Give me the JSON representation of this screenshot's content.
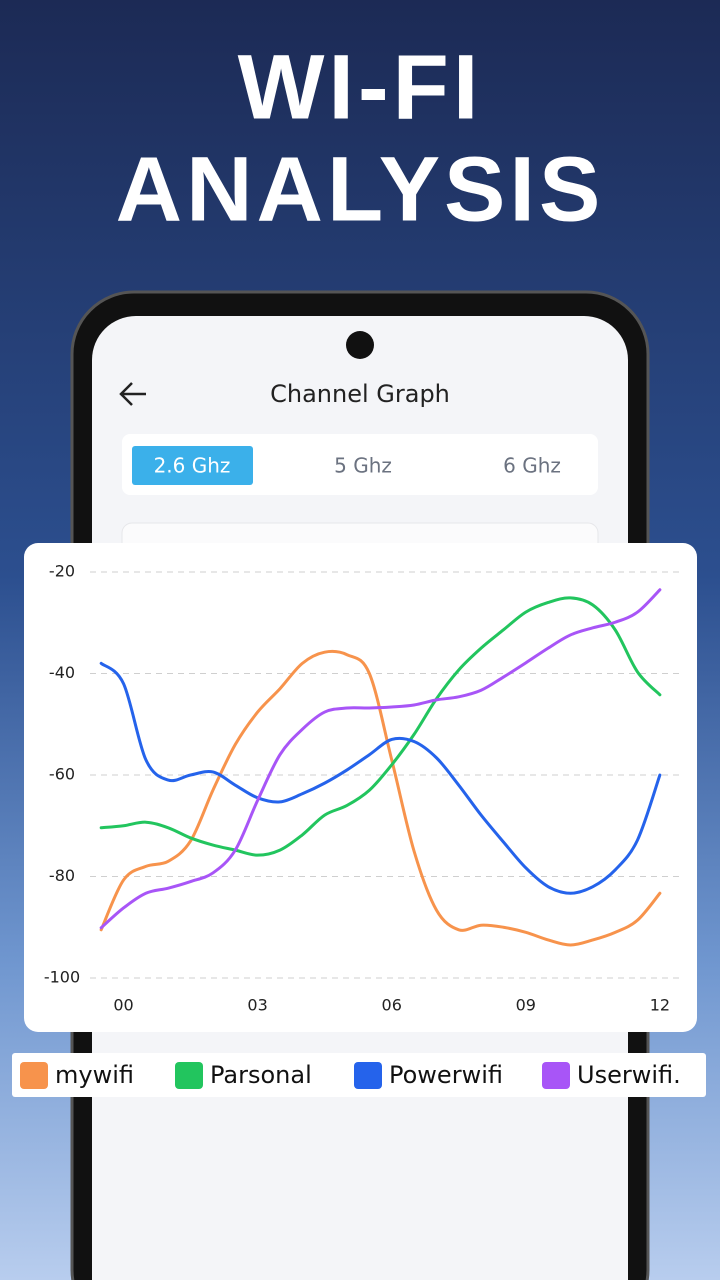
{
  "headline": [
    "WI-FI",
    "ANALYSIS"
  ],
  "screen": {
    "title": "Channel Graph",
    "tabs": [
      "2.6 Ghz",
      "5 Ghz",
      "6 Ghz"
    ],
    "active_tab": 0
  },
  "chart_data": {
    "type": "line",
    "x": [
      -0.5,
      0,
      0.5,
      1,
      1.5,
      2,
      2.5,
      3,
      3.5,
      4,
      4.5,
      5,
      5.5,
      6,
      6.5,
      7,
      7.5,
      8,
      8.5,
      9,
      9.5,
      10,
      10.5,
      11,
      11.5,
      12
    ],
    "xlim": [
      -0.75,
      12.45
    ],
    "xticks": [
      {
        "value": 0,
        "label": "00"
      },
      {
        "value": 3,
        "label": "03"
      },
      {
        "value": 6,
        "label": "06"
      },
      {
        "value": 9,
        "label": "09"
      },
      {
        "value": 12,
        "label": "12"
      }
    ],
    "ylim": [
      -100,
      -20
    ],
    "yticks": [
      -20,
      -40,
      -60,
      -80,
      -100
    ],
    "grid": true,
    "series": [
      {
        "name": "mywifi",
        "color": "#f7934c",
        "values": [
          -90.5,
          -80.7,
          -78,
          -77,
          -73,
          -63,
          -54,
          -47.6,
          -43,
          -38,
          -35.8,
          -36.3,
          -40,
          -57,
          -75,
          -86.6,
          -90.5,
          -89.6,
          -90,
          -91,
          -92.5,
          -93.5,
          -92.5,
          -91,
          -88.6,
          -83.3
        ]
      },
      {
        "name": "Parsonal",
        "color": "#22c55e",
        "values": [
          -70.4,
          -70,
          -69.3,
          -70.4,
          -72.4,
          -73.8,
          -74.8,
          -75.8,
          -74.8,
          -71.8,
          -67.9,
          -66,
          -63,
          -58,
          -52,
          -45,
          -39.3,
          -35,
          -31.4,
          -27.9,
          -26,
          -25.1,
          -26.5,
          -31.4,
          -39.7,
          -44.2
        ]
      },
      {
        "name": "Powerwifi",
        "color": "#2563eb",
        "values": [
          -38,
          -42,
          -57,
          -61,
          -60,
          -59.4,
          -62,
          -64.5,
          -65.3,
          -63.7,
          -61.6,
          -59,
          -56,
          -53,
          -53.4,
          -56.6,
          -62,
          -67.9,
          -73.2,
          -78.3,
          -82,
          -83.3,
          -82,
          -78.7,
          -72.8,
          -60
        ]
      },
      {
        "name": "Userwifi.",
        "color": "#a855f7",
        "values": [
          -90.1,
          -86.2,
          -83.3,
          -82.3,
          -81,
          -79.3,
          -74.8,
          -65,
          -56,
          -51,
          -47.6,
          -46.8,
          -46.8,
          -46.6,
          -46.2,
          -45.2,
          -44.6,
          -43.3,
          -40.7,
          -37.9,
          -35,
          -32.4,
          -31,
          -29.9,
          -27.9,
          -23.5
        ]
      }
    ]
  }
}
